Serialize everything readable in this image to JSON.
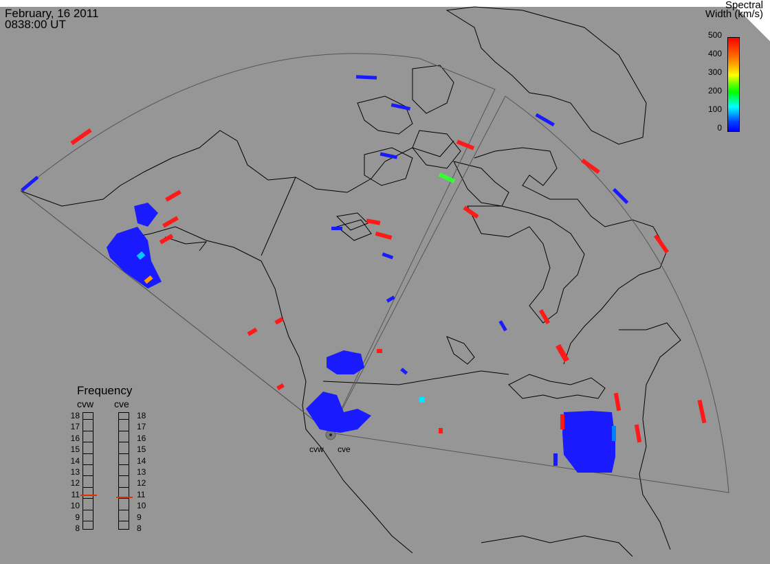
{
  "header": {
    "date": "February, 16 2011",
    "time": "0838:00 UT"
  },
  "colorbar": {
    "title_line1": "Spectral",
    "title_line2": "Width (km/s)",
    "ticks": [
      "500",
      "400",
      "300",
      "200",
      "100",
      "0"
    ],
    "min": 0,
    "max": 500,
    "colors": [
      "#0000ff",
      "#00ffff",
      "#00ff00",
      "#ffff00",
      "#ff8000",
      "#ff0000"
    ]
  },
  "frequency": {
    "title": "Frequency",
    "radars": [
      {
        "code": "cvw",
        "value_mhz": 10.8
      },
      {
        "code": "cve",
        "value_mhz": 10.6
      }
    ],
    "scale": [
      "18",
      "17",
      "16",
      "15",
      "14",
      "13",
      "12",
      "11",
      "10",
      "9",
      "8"
    ],
    "indicator_color": "#e03000"
  },
  "radar_labels": [
    "cvw",
    "cve"
  ],
  "map": {
    "background": "#969696",
    "coastline_color": "#000000",
    "fov_outline_color": "#555555"
  }
}
